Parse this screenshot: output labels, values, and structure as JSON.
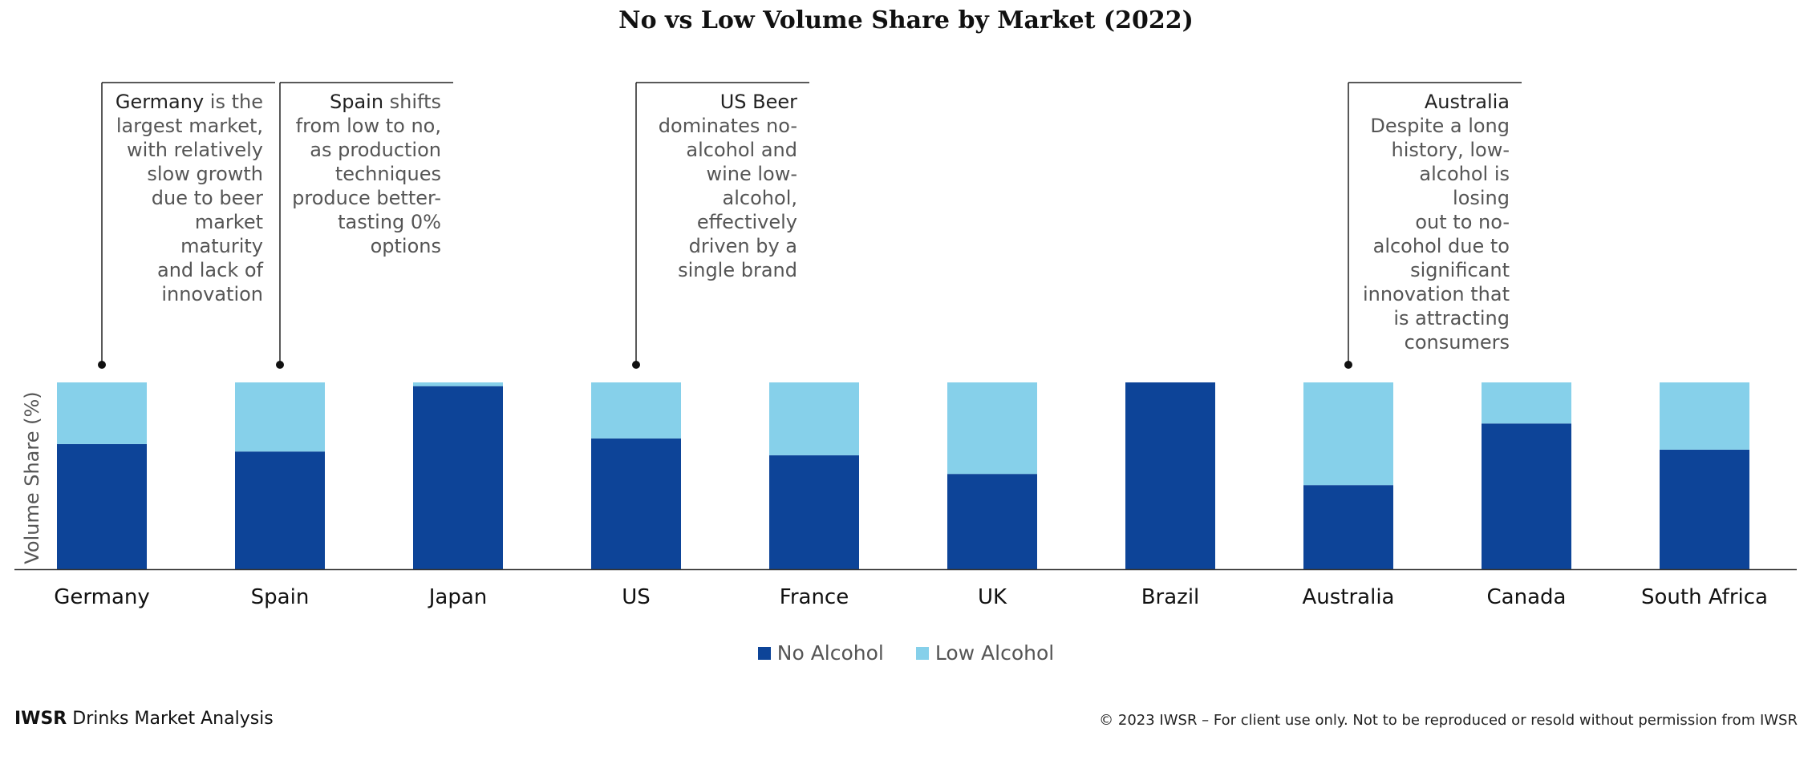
{
  "chart_data": {
    "type": "bar",
    "stacked": true,
    "title": "No vs Low Volume Share by Market (2022)",
    "ylabel": "Volume Share (%)",
    "xlabel": "",
    "ylim": [
      0,
      100
    ],
    "categories": [
      "Germany",
      "Spain",
      "Japan",
      "US",
      "France",
      "UK",
      "Brazil",
      "Australia",
      "Canada",
      "South Africa"
    ],
    "series": [
      {
        "name": "No Alcohol",
        "color": "#0d4498",
        "values": [
          67,
          63,
          98,
          70,
          61,
          51,
          100,
          45,
          78,
          64
        ]
      },
      {
        "name": "Low Alcohol",
        "color": "#86d0ea",
        "values": [
          33,
          37,
          2,
          30,
          39,
          49,
          0,
          55,
          22,
          36
        ]
      }
    ],
    "grid": false,
    "legend": "bottom-center",
    "annotations": [
      {
        "category": "Germany",
        "emphasis": "Germany",
        "lines": [
          "Germany is the",
          "largest market,",
          "with relatively",
          "slow growth",
          "due to beer",
          "market maturity",
          "and lack of",
          "innovation"
        ]
      },
      {
        "category": "Spain",
        "emphasis": "Spain",
        "lines": [
          "Spain shifts",
          "from low to no,",
          "as production",
          "techniques",
          "produce better-",
          "tasting 0%",
          "options"
        ]
      },
      {
        "category": "US",
        "emphasis": "US Beer",
        "lines": [
          "US Beer",
          "dominates no-",
          "alcohol and",
          "wine low-",
          "alcohol,",
          "effectively",
          "driven by a",
          "single brand"
        ]
      },
      {
        "category": "Australia",
        "emphasis": "Australia",
        "lines": [
          "Australia",
          "Despite a long",
          "history, low-",
          "alcohol is losing",
          "out to no-",
          "alcohol due to",
          "significant",
          "innovation that",
          "is attracting",
          "consumers"
        ]
      }
    ]
  },
  "footer": {
    "brand": "IWSR",
    "subtitle": "Drinks Market Analysis",
    "copyright": "© 2023 IWSR – For client use only. Not to be reproduced or resold without permission from IWSR"
  }
}
